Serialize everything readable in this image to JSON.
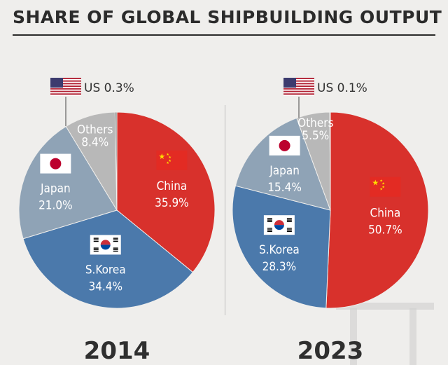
{
  "title": "SHARE OF GLOBAL SHIPBUILDING OUTPUT",
  "colors": {
    "China": "#d8312c",
    "S.Korea": "#4b79ab",
    "Japan": "#8fa3b6",
    "Others": "#b8b8b8",
    "US": "#7d7d7d"
  },
  "chart_data": [
    {
      "type": "pie",
      "year": "2014",
      "slices": [
        {
          "name": "China",
          "value": 35.9,
          "label": "35.9%",
          "flag": "china-flag"
        },
        {
          "name": "S.Korea",
          "value": 34.4,
          "label": "34.4%",
          "flag": "korea-flag"
        },
        {
          "name": "Japan",
          "value": 21.0,
          "label": "21.0%",
          "flag": "japan-flag"
        },
        {
          "name": "Others",
          "value": 8.4,
          "label": "8.4%"
        },
        {
          "name": "US",
          "value": 0.3,
          "label": "0.3%",
          "flag": "us-flag"
        }
      ]
    },
    {
      "type": "pie",
      "year": "2023",
      "slices": [
        {
          "name": "China",
          "value": 50.7,
          "label": "50.7%",
          "flag": "china-flag"
        },
        {
          "name": "S.Korea",
          "value": 28.3,
          "label": "28.3%",
          "flag": "korea-flag"
        },
        {
          "name": "Japan",
          "value": 15.4,
          "label": "15.4%",
          "flag": "japan-flag"
        },
        {
          "name": "Others",
          "value": 5.5,
          "label": "5.5%"
        },
        {
          "name": "US",
          "value": 0.1,
          "label": "0.1%",
          "flag": "us-flag"
        }
      ]
    }
  ]
}
